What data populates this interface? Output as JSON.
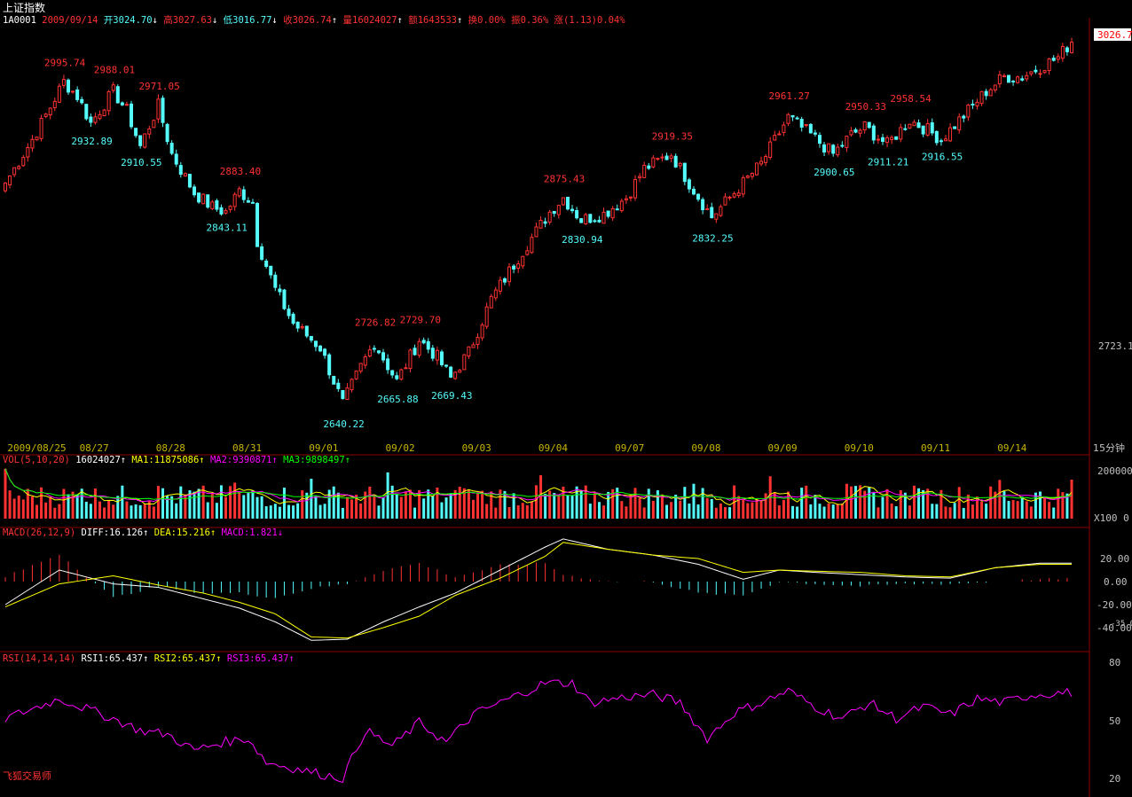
{
  "header": {
    "title": "上证指数",
    "code": "1A0001",
    "date": "2009/09/14",
    "open": "开3024.70",
    "open_arrow": "↓",
    "high": "高3027.63",
    "high_arrow": "↓",
    "low": "低3016.77",
    "low_arrow": "↓",
    "close": "收3026.74",
    "close_arrow": "↑",
    "volume": "量16024027",
    "volume_arrow": "↑",
    "amount": "额1643533",
    "amount_arrow": "↑",
    "turnover": "换0.00%",
    "amplitude": "振0.36%",
    "change": "涨(1.13)0.04%"
  },
  "colors": {
    "up": "#ff3232",
    "down": "#54fcfc",
    "white_line": "#ffffff",
    "yellow_line": "#ffff00",
    "magenta_line": "#ff00ff",
    "green_line": "#00ff00",
    "axis_text": "#c0c0c0",
    "date_text": "#c8b400",
    "axis_line": "#8b0000"
  },
  "price_panel": {
    "current_price_tag": "3026.7",
    "mid_axis_label": "2723.1",
    "period_label": "15分钟",
    "annotations": [
      {
        "label": "2995.74",
        "type": "high",
        "index": 13
      },
      {
        "label": "2988.01",
        "type": "high",
        "index": 24
      },
      {
        "label": "2971.05",
        "type": "high",
        "index": 34
      },
      {
        "label": "2932.89",
        "type": "low",
        "index": 19
      },
      {
        "label": "2910.55",
        "type": "low",
        "index": 30
      },
      {
        "label": "2883.40",
        "type": "high",
        "index": 52
      },
      {
        "label": "2843.11",
        "type": "low",
        "index": 49
      },
      {
        "label": "2726.82",
        "type": "high",
        "index": 82
      },
      {
        "label": "2729.70",
        "type": "high",
        "index": 92
      },
      {
        "label": "2640.22",
        "type": "low",
        "index": 75
      },
      {
        "label": "2665.88",
        "type": "low",
        "index": 87
      },
      {
        "label": "2669.43",
        "type": "low",
        "index": 99
      },
      {
        "label": "2875.43",
        "type": "high",
        "index": 124
      },
      {
        "label": "2830.94",
        "type": "low",
        "index": 128
      },
      {
        "label": "2919.35",
        "type": "high",
        "index": 148
      },
      {
        "label": "2832.25",
        "type": "low",
        "index": 157
      },
      {
        "label": "2961.27",
        "type": "high",
        "index": 174
      },
      {
        "label": "2900.65",
        "type": "low",
        "index": 184
      },
      {
        "label": "2950.33",
        "type": "high",
        "index": 191
      },
      {
        "label": "2911.21",
        "type": "low",
        "index": 196
      },
      {
        "label": "2958.54",
        "type": "high",
        "index": 201
      },
      {
        "label": "2916.55",
        "type": "low",
        "index": 208
      }
    ]
  },
  "date_axis": [
    {
      "label": "2009/08/25",
      "index": 6
    },
    {
      "label": "08/27",
      "index": 22
    },
    {
      "label": "08/28",
      "index": 39
    },
    {
      "label": "08/31",
      "index": 56
    },
    {
      "label": "09/01",
      "index": 73
    },
    {
      "label": "09/02",
      "index": 90
    },
    {
      "label": "09/03",
      "index": 107
    },
    {
      "label": "09/04",
      "index": 124
    },
    {
      "label": "09/07",
      "index": 141
    },
    {
      "label": "09/08",
      "index": 158
    },
    {
      "label": "09/09",
      "index": 175
    },
    {
      "label": "09/10",
      "index": 192
    },
    {
      "label": "09/11",
      "index": 209
    },
    {
      "label": "09/14",
      "index": 226
    }
  ],
  "volume_panel": {
    "name": "VOL(5,10,20)",
    "value": "16024027",
    "value_arrow": "↑",
    "ma1": "MA1:11875086",
    "ma1_arrow": "↑",
    "ma2": "MA2:9390871",
    "ma2_arrow": "↑",
    "ma3": "MA3:9898497",
    "ma3_arrow": "↑",
    "axis_top": "200000",
    "axis_bottom": "X100 0"
  },
  "macd_panel": {
    "name": "MACD(26,12,9)",
    "diff": "DIFF:16.126",
    "diff_arrow": "↑",
    "dea": "DEA:15.216",
    "dea_arrow": "↑",
    "macd": "MACD:1.821",
    "macd_arrow": "↓",
    "axis_labels": [
      "20.00",
      "0.00",
      "-20.00",
      "-40.00"
    ],
    "axis_extra": "-35.00"
  },
  "rsi_panel": {
    "name": "RSI(14,14,14)",
    "rsi1": "RSI1:65.437",
    "rsi1_arrow": "↑",
    "rsi2": "RSI2:65.437",
    "rsi2_arrow": "↑",
    "rsi3": "RSI3:65.437",
    "rsi3_arrow": "↑",
    "axis_labels": [
      "80",
      "50",
      "20"
    ]
  },
  "footer": {
    "brand": "飞狐交易师"
  },
  "chart_data": {
    "type": "candlestick",
    "title": "上证指数",
    "interval": "15分钟",
    "y_range": [
      2620,
      3040
    ],
    "series": [
      {
        "name": "close",
        "values": []
      }
    ],
    "close_anchors": [
      [
        0,
        2880
      ],
      [
        6,
        2925
      ],
      [
        9,
        2950
      ],
      [
        13,
        2985
      ],
      [
        16,
        2970
      ],
      [
        19,
        2942
      ],
      [
        24,
        2975
      ],
      [
        27,
        2955
      ],
      [
        30,
        2918
      ],
      [
        34,
        2960
      ],
      [
        37,
        2910
      ],
      [
        42,
        2870
      ],
      [
        46,
        2855
      ],
      [
        49,
        2850
      ],
      [
        52,
        2872
      ],
      [
        55,
        2860
      ],
      [
        56,
        2820
      ],
      [
        60,
        2770
      ],
      [
        64,
        2735
      ],
      [
        70,
        2710
      ],
      [
        75,
        2652
      ],
      [
        79,
        2690
      ],
      [
        82,
        2715
      ],
      [
        87,
        2675
      ],
      [
        92,
        2718
      ],
      [
        96,
        2700
      ],
      [
        99,
        2678
      ],
      [
        103,
        2705
      ],
      [
        108,
        2760
      ],
      [
        115,
        2810
      ],
      [
        121,
        2850
      ],
      [
        124,
        2865
      ],
      [
        128,
        2842
      ],
      [
        133,
        2848
      ],
      [
        138,
        2865
      ],
      [
        142,
        2895
      ],
      [
        148,
        2910
      ],
      [
        152,
        2880
      ],
      [
        157,
        2845
      ],
      [
        162,
        2870
      ],
      [
        168,
        2900
      ],
      [
        174,
        2948
      ],
      [
        179,
        2930
      ],
      [
        184,
        2910
      ],
      [
        188,
        2930
      ],
      [
        191,
        2938
      ],
      [
        196,
        2920
      ],
      [
        201,
        2945
      ],
      [
        205,
        2935
      ],
      [
        208,
        2925
      ],
      [
        213,
        2950
      ],
      [
        218,
        2975
      ],
      [
        222,
        2990
      ],
      [
        226,
        2990
      ],
      [
        230,
        3000
      ],
      [
        234,
        3010
      ],
      [
        237,
        3027
      ]
    ],
    "macd_anchors": {
      "diff": [
        [
          0,
          -20
        ],
        [
          12,
          10
        ],
        [
          24,
          -2
        ],
        [
          34,
          -5
        ],
        [
          44,
          -15
        ],
        [
          52,
          -23
        ],
        [
          60,
          -35
        ],
        [
          68,
          -51
        ],
        [
          76,
          -50
        ],
        [
          84,
          -35
        ],
        [
          92,
          -22
        ],
        [
          100,
          -10
        ],
        [
          110,
          10
        ],
        [
          120,
          30
        ],
        [
          124,
          37
        ],
        [
          134,
          28
        ],
        [
          144,
          23
        ],
        [
          154,
          15
        ],
        [
          164,
          2
        ],
        [
          172,
          10
        ],
        [
          180,
          8
        ],
        [
          190,
          6
        ],
        [
          200,
          4
        ],
        [
          210,
          3
        ],
        [
          220,
          12
        ],
        [
          230,
          16
        ],
        [
          237,
          16
        ]
      ],
      "dea": [
        [
          0,
          -22
        ],
        [
          12,
          -2
        ],
        [
          24,
          5
        ],
        [
          34,
          -3
        ],
        [
          44,
          -10
        ],
        [
          52,
          -18
        ],
        [
          60,
          -28
        ],
        [
          68,
          -48
        ],
        [
          76,
          -49
        ],
        [
          84,
          -40
        ],
        [
          92,
          -30
        ],
        [
          100,
          -12
        ],
        [
          110,
          3
        ],
        [
          120,
          22
        ],
        [
          124,
          34
        ],
        [
          134,
          28
        ],
        [
          144,
          23
        ],
        [
          154,
          20
        ],
        [
          164,
          8
        ],
        [
          172,
          10
        ],
        [
          180,
          9
        ],
        [
          190,
          8
        ],
        [
          200,
          5
        ],
        [
          210,
          4
        ],
        [
          220,
          12
        ],
        [
          230,
          15
        ],
        [
          237,
          15
        ]
      ]
    },
    "rsi_anchors": [
      [
        0,
        52
      ],
      [
        6,
        57
      ],
      [
        12,
        62
      ],
      [
        18,
        57
      ],
      [
        24,
        52
      ],
      [
        30,
        46
      ],
      [
        36,
        44
      ],
      [
        42,
        36
      ],
      [
        48,
        40
      ],
      [
        54,
        42
      ],
      [
        58,
        30
      ],
      [
        64,
        27
      ],
      [
        70,
        24
      ],
      [
        75,
        22
      ],
      [
        80,
        46
      ],
      [
        86,
        38
      ],
      [
        92,
        50
      ],
      [
        98,
        40
      ],
      [
        104,
        54
      ],
      [
        112,
        62
      ],
      [
        120,
        70
      ],
      [
        126,
        70
      ],
      [
        130,
        60
      ],
      [
        138,
        63
      ],
      [
        144,
        64
      ],
      [
        150,
        60
      ],
      [
        156,
        42
      ],
      [
        162,
        55
      ],
      [
        168,
        60
      ],
      [
        174,
        66
      ],
      [
        180,
        58
      ],
      [
        186,
        52
      ],
      [
        192,
        60
      ],
      [
        198,
        52
      ],
      [
        204,
        58
      ],
      [
        210,
        54
      ],
      [
        216,
        62
      ],
      [
        222,
        60
      ],
      [
        228,
        64
      ],
      [
        234,
        65
      ],
      [
        237,
        65
      ]
    ]
  }
}
